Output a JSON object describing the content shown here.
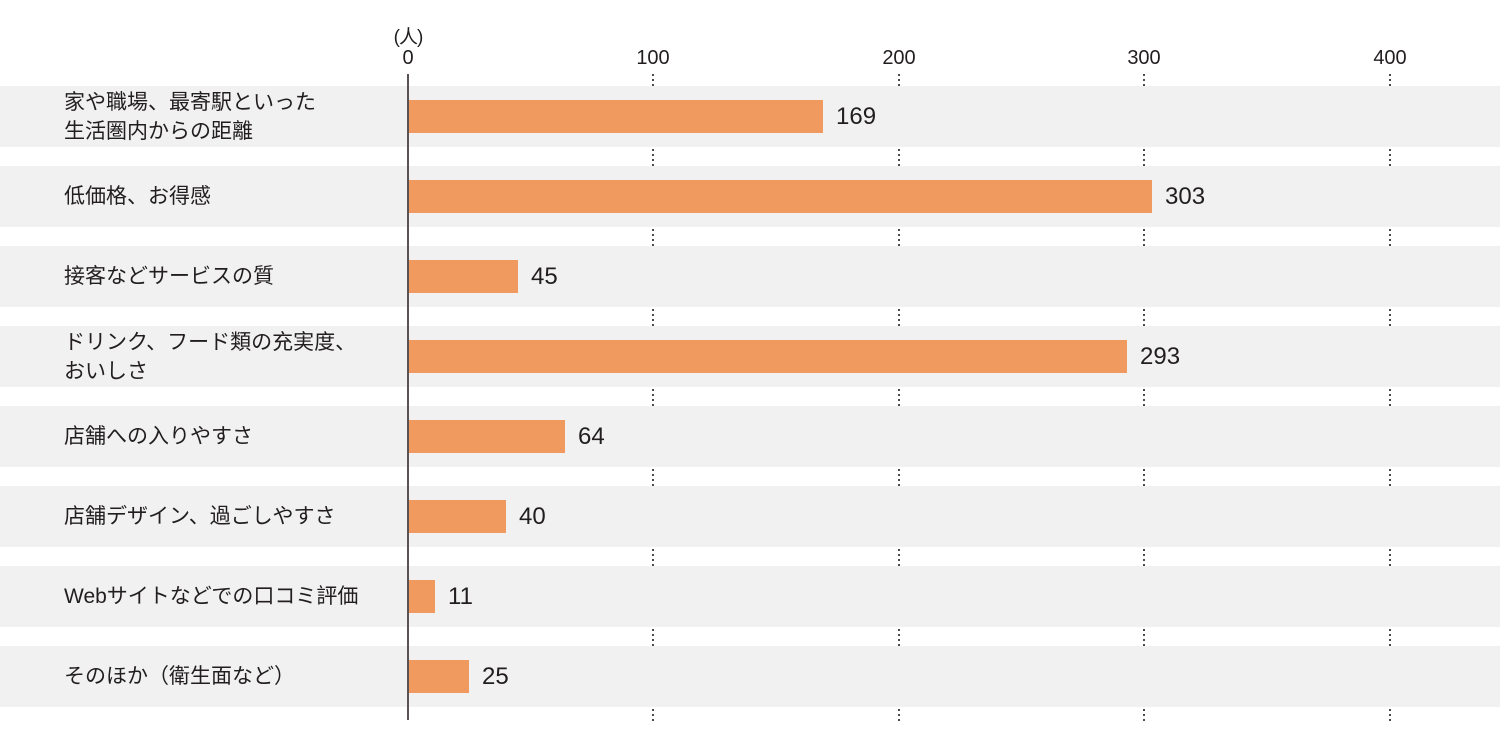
{
  "chart_data": {
    "type": "bar",
    "orientation": "horizontal",
    "title": "",
    "unit_label": "(人)",
    "axis": {
      "tick_labels": [
        "0",
        "100",
        "200",
        "300",
        "400"
      ],
      "tick_values": [
        0,
        100,
        200,
        300,
        400
      ],
      "xlim": [
        0,
        445
      ],
      "grid": "dotted-vertical"
    },
    "legend": null,
    "rows": [
      {
        "label": "家や職場、最寄駅といった\n生活圏内からの距離",
        "value": 169
      },
      {
        "label": "低価格、お得感",
        "value": 303
      },
      {
        "label": "接客などサービスの質",
        "value": 45
      },
      {
        "label": "ドリンク、フード類の充実度、\nおいしさ",
        "value": 293
      },
      {
        "label": "店舗への入りやすさ",
        "value": 64
      },
      {
        "label": "店舗デザイン、過ごしやすさ",
        "value": 40
      },
      {
        "label": "Webサイトなどでの口コミ評価",
        "value": 11
      },
      {
        "label": "そのほか（衛生面など）",
        "value": 25
      }
    ],
    "colors": {
      "bar": "#f09a5f",
      "row_band": "#f1f1f1",
      "axis_line": "#585252",
      "gridline": "#4d4a4a",
      "text": "#221e1f"
    }
  }
}
